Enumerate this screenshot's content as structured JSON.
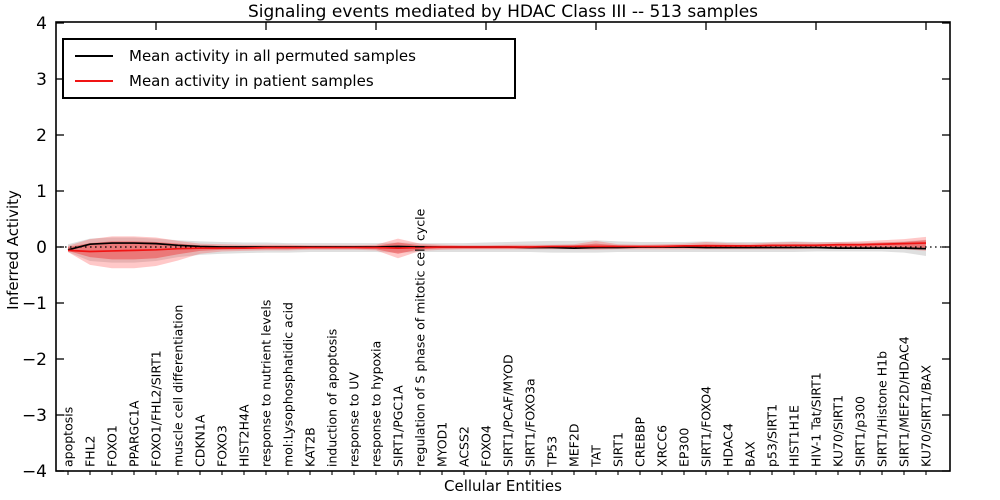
{
  "chart_data": {
    "type": "line",
    "title": "Signaling events mediated by HDAC Class III -- 513 samples",
    "xlabel": "Cellular Entities",
    "ylabel": "Inferred Activity",
    "ylim": [
      -4,
      4
    ],
    "grid": false,
    "legend_position": "upper left",
    "yticks": [
      {
        "v": 4,
        "label": "4"
      },
      {
        "v": 3,
        "label": "3"
      },
      {
        "v": 2,
        "label": "2"
      },
      {
        "v": 1,
        "label": "1"
      },
      {
        "v": 0,
        "label": "0"
      },
      {
        "v": -1,
        "label": "−1"
      },
      {
        "v": -2,
        "label": "−2"
      },
      {
        "v": -3,
        "label": "−3"
      },
      {
        "v": -4,
        "label": "−4"
      }
    ],
    "zero_line": {
      "value": 0,
      "style": "dotted",
      "color": "#000000"
    },
    "categories": [
      "apoptosis",
      "FHL2",
      "FOXO1",
      "PPARGC1A",
      "FOXO1/FHL2/SIRT1",
      "muscle cell differentiation",
      "CDKN1A",
      "FOXO3",
      "HIST2H4A",
      "response to nutrient levels",
      "mol:Lysophosphatidic acid",
      "KAT2B",
      "induction of apoptosis",
      "response to UV",
      "response to hypoxia",
      "SIRT1/PGC1A",
      "regulation of S phase of mitotic cell cycle",
      "MYOD1",
      "ACSS2",
      "FOXO4",
      "SIRT1/PCAF/MYOD",
      "SIRT1/FOXO3a",
      "TP53",
      "MEF2D",
      "TAT",
      "SIRT1",
      "CREBBP",
      "XRCC6",
      "EP300",
      "SIRT1/FOXO4",
      "HDAC4",
      "BAX",
      "p53/SIRT1",
      "HIST1H1E",
      "HIV-1 Tat/SIRT1",
      "KU70/SIRT1",
      "SIRT1/p300",
      "SIRT1/Histone H1b",
      "SIRT1/MEF2D/HDAC4",
      "KU70/SIRT1/BAX"
    ],
    "series": [
      {
        "name": "Mean activity in all permuted samples",
        "color": "#000000",
        "values": [
          -0.05,
          0.05,
          0.07,
          0.07,
          0.06,
          0.03,
          0.01,
          0.0,
          0.0,
          0.0,
          0.0,
          0.0,
          0.0,
          0.0,
          0.0,
          0.01,
          0.0,
          0.0,
          0.0,
          0.0,
          0.0,
          -0.01,
          -0.01,
          -0.02,
          -0.01,
          -0.01,
          0.0,
          0.0,
          0.0,
          -0.01,
          -0.01,
          -0.01,
          -0.01,
          -0.01,
          -0.01,
          -0.02,
          -0.02,
          -0.02,
          -0.02,
          -0.03
        ]
      },
      {
        "name": "Mean activity in patient samples",
        "color": "#f01414",
        "values": [
          -0.06,
          -0.08,
          -0.07,
          -0.06,
          -0.05,
          -0.03,
          -0.02,
          -0.02,
          -0.02,
          -0.01,
          -0.01,
          -0.01,
          -0.01,
          -0.01,
          -0.01,
          -0.02,
          -0.01,
          0.0,
          0.0,
          0.0,
          0.0,
          0.0,
          0.01,
          0.01,
          0.01,
          0.01,
          0.01,
          0.01,
          0.02,
          0.02,
          0.02,
          0.02,
          0.03,
          0.03,
          0.03,
          0.04,
          0.04,
          0.05,
          0.06,
          0.07
        ]
      }
    ],
    "bands": [
      {
        "name": "permuted-samples-range",
        "fill": "#9a9a9a",
        "opacity": 0.32,
        "upper": [
          0.05,
          0.15,
          0.17,
          0.17,
          0.15,
          0.12,
          0.1,
          0.09,
          0.08,
          0.08,
          0.07,
          0.07,
          0.07,
          0.07,
          0.07,
          0.08,
          0.07,
          0.07,
          0.07,
          0.08,
          0.09,
          0.1,
          0.11,
          0.11,
          0.12,
          0.1,
          0.09,
          0.09,
          0.09,
          0.1,
          0.09,
          0.09,
          0.09,
          0.1,
          0.09,
          0.09,
          0.08,
          0.08,
          0.1,
          0.13
        ],
        "lower": [
          -0.09,
          -0.25,
          -0.28,
          -0.28,
          -0.25,
          -0.18,
          -0.14,
          -0.12,
          -0.11,
          -0.1,
          -0.1,
          -0.09,
          -0.09,
          -0.09,
          -0.09,
          -0.1,
          -0.09,
          -0.09,
          -0.09,
          -0.09,
          -0.09,
          -0.09,
          -0.1,
          -0.1,
          -0.1,
          -0.09,
          -0.09,
          -0.09,
          -0.09,
          -0.09,
          -0.09,
          -0.09,
          -0.09,
          -0.09,
          -0.08,
          -0.08,
          -0.08,
          -0.08,
          -0.1,
          -0.16
        ]
      },
      {
        "name": "patient-samples-range-outer",
        "fill": "#ff4a4a",
        "opacity": 0.3,
        "upper": [
          0.02,
          0.14,
          0.19,
          0.19,
          0.17,
          0.11,
          0.06,
          0.05,
          0.04,
          0.04,
          0.04,
          0.03,
          0.03,
          0.03,
          0.04,
          0.15,
          0.06,
          0.04,
          0.03,
          0.03,
          0.04,
          0.04,
          0.04,
          0.05,
          0.11,
          0.05,
          0.04,
          0.05,
          0.06,
          0.09,
          0.07,
          0.06,
          0.08,
          0.09,
          0.08,
          0.09,
          0.1,
          0.12,
          0.14,
          0.18
        ],
        "lower": [
          -0.09,
          -0.32,
          -0.38,
          -0.38,
          -0.34,
          -0.24,
          -0.12,
          -0.08,
          -0.07,
          -0.06,
          -0.06,
          -0.05,
          -0.05,
          -0.05,
          -0.06,
          -0.2,
          -0.07,
          -0.05,
          -0.04,
          -0.04,
          -0.04,
          -0.04,
          -0.04,
          -0.04,
          -0.05,
          -0.04,
          -0.04,
          -0.04,
          -0.04,
          -0.04,
          -0.04,
          -0.04,
          -0.04,
          -0.04,
          -0.03,
          -0.03,
          -0.03,
          -0.03,
          -0.04,
          -0.07
        ]
      },
      {
        "name": "patient-samples-range-inner",
        "fill": "#ee2828",
        "opacity": 0.42,
        "upper": [
          0.0,
          0.07,
          0.1,
          0.1,
          0.09,
          0.06,
          0.03,
          0.02,
          0.02,
          0.02,
          0.02,
          0.02,
          0.02,
          0.02,
          0.02,
          0.08,
          0.03,
          0.02,
          0.02,
          0.02,
          0.02,
          0.02,
          0.02,
          0.03,
          0.06,
          0.03,
          0.02,
          0.03,
          0.03,
          0.05,
          0.04,
          0.03,
          0.04,
          0.05,
          0.05,
          0.06,
          0.06,
          0.08,
          0.09,
          0.12
        ],
        "lower": [
          -0.07,
          -0.18,
          -0.22,
          -0.22,
          -0.2,
          -0.13,
          -0.07,
          -0.05,
          -0.04,
          -0.04,
          -0.04,
          -0.03,
          -0.03,
          -0.03,
          -0.04,
          -0.12,
          -0.04,
          -0.03,
          -0.03,
          -0.03,
          -0.03,
          -0.03,
          -0.02,
          -0.02,
          -0.03,
          -0.02,
          -0.02,
          -0.02,
          -0.02,
          -0.02,
          -0.02,
          -0.02,
          -0.02,
          -0.02,
          -0.02,
          -0.02,
          -0.02,
          -0.02,
          -0.03,
          -0.04
        ]
      }
    ]
  }
}
